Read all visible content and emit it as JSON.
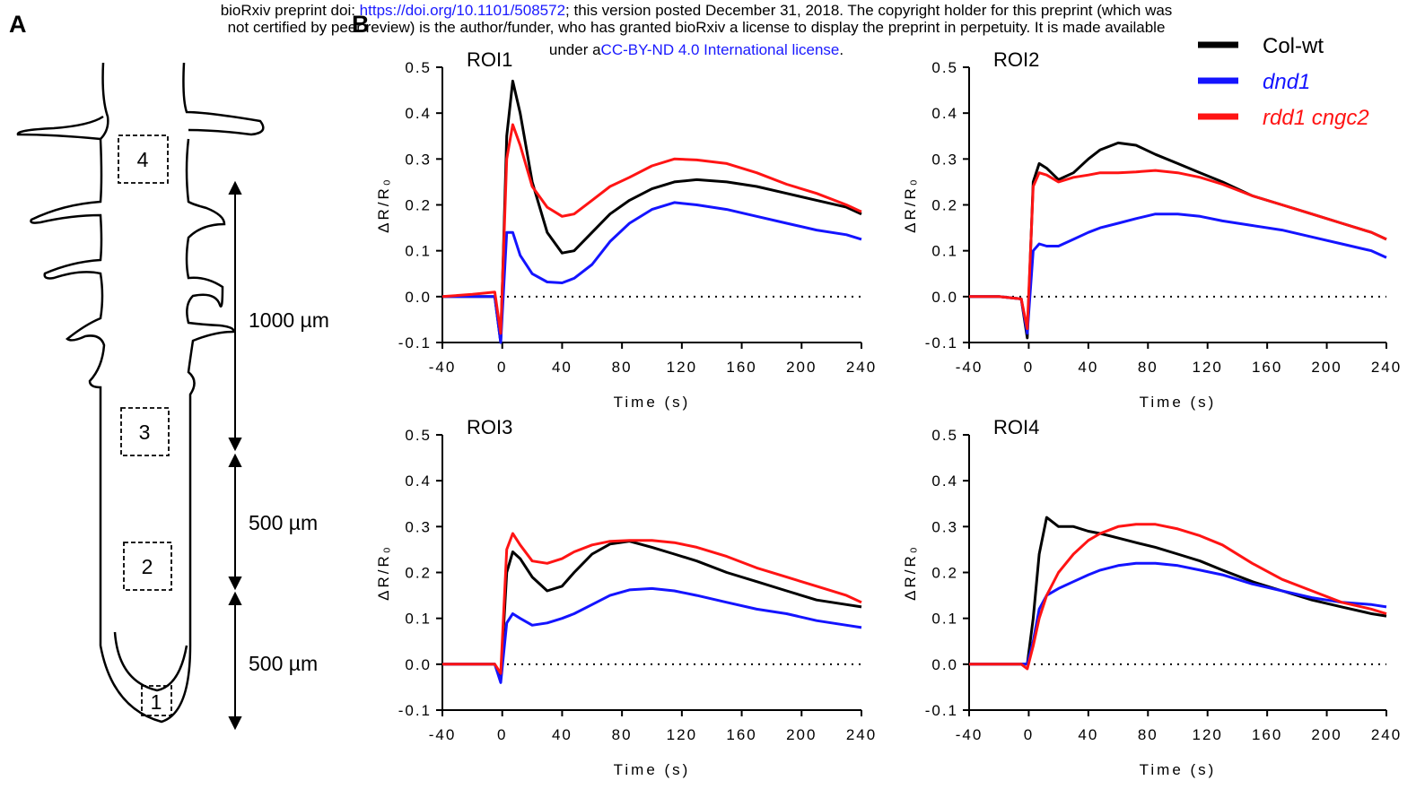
{
  "header": {
    "line1_prefix": "bioRxiv preprint doi: ",
    "doi_link": "https://doi.org/10.1101/508572",
    "line1_suffix": "; this version posted December 31, 2018. The copyright holder for this preprint (which was",
    "line2": "not certified by peer review) is the author/funder, who has granted bioRxiv a license to display the preprint in perpetuity. It is made available",
    "line3_prefix": "under a",
    "license_link": "CC-BY-ND 4.0 International license",
    "line3_suffix": "."
  },
  "panel_labels": [
    "A",
    "B"
  ],
  "diagram": {
    "boxes": [
      "4",
      "3",
      "2",
      "1"
    ],
    "distances": [
      "1000 µm",
      "500 µm",
      "500 µm"
    ]
  },
  "chart_data": [
    {
      "type": "line",
      "title": "ROI1",
      "xlabel": "Time (s)",
      "ylabel": "ΔR/R₀",
      "zero_line": true,
      "x": [
        -40,
        -20,
        -5,
        -1,
        3,
        7,
        12,
        20,
        30,
        40,
        48,
        60,
        72,
        85,
        100,
        115,
        130,
        150,
        170,
        190,
        210,
        230,
        240
      ],
      "series": [
        {
          "color": "#000000",
          "values": [
            0,
            0,
            0,
            -0.1,
            0.35,
            0.47,
            0.4,
            0.25,
            0.14,
            0.095,
            0.1,
            0.14,
            0.18,
            0.21,
            0.235,
            0.25,
            0.255,
            0.25,
            0.24,
            0.225,
            0.21,
            0.195,
            0.18
          ]
        },
        {
          "color": "#1414ff",
          "values": [
            0,
            0,
            0,
            -0.1,
            0.14,
            0.14,
            0.09,
            0.05,
            0.032,
            0.03,
            0.04,
            0.07,
            0.12,
            0.16,
            0.19,
            0.205,
            0.2,
            0.19,
            0.175,
            0.16,
            0.145,
            0.135,
            0.125
          ]
        },
        {
          "color": "#ff1414",
          "values": [
            0,
            0.005,
            0.01,
            -0.08,
            0.3,
            0.375,
            0.33,
            0.24,
            0.195,
            0.175,
            0.18,
            0.21,
            0.24,
            0.26,
            0.285,
            0.3,
            0.298,
            0.29,
            0.27,
            0.245,
            0.225,
            0.2,
            0.185
          ]
        }
      ],
      "xlim": [
        -40,
        240
      ],
      "ylim": [
        -0.1,
        0.5
      ],
      "xticks": [
        -40,
        0,
        40,
        80,
        120,
        160,
        200,
        240
      ],
      "yticks": [
        -0.1,
        {
          "value": 0,
          "label": "0.0"
        },
        0.1,
        0.2,
        0.3,
        0.4,
        0.5
      ]
    },
    {
      "type": "line",
      "title": "ROI2",
      "xlabel": "Time (s)",
      "ylabel": "ΔR/R₀",
      "zero_line": true,
      "legend": "top-right",
      "x": [
        -40,
        -20,
        -5,
        -1,
        3,
        7,
        12,
        20,
        30,
        40,
        48,
        60,
        72,
        85,
        100,
        115,
        130,
        150,
        170,
        190,
        210,
        230,
        240
      ],
      "series": [
        {
          "name": "Col-wt",
          "color": "#000000",
          "values": [
            0,
            0,
            -0.005,
            -0.09,
            0.25,
            0.29,
            0.28,
            0.255,
            0.27,
            0.3,
            0.32,
            0.335,
            0.33,
            0.31,
            0.29,
            0.27,
            0.25,
            0.22,
            0.2,
            0.18,
            0.16,
            0.14,
            0.125
          ]
        },
        {
          "name": "dnd1",
          "color": "#1414ff",
          "values": [
            0,
            0,
            -0.005,
            -0.08,
            0.1,
            0.115,
            0.11,
            0.11,
            0.125,
            0.14,
            0.15,
            0.16,
            0.17,
            0.18,
            0.18,
            0.175,
            0.165,
            0.155,
            0.145,
            0.13,
            0.115,
            0.1,
            0.085
          ]
        },
        {
          "name": "rdd1 cngc2",
          "color": "#ff1414",
          "values": [
            0,
            0,
            -0.005,
            -0.07,
            0.24,
            0.27,
            0.265,
            0.25,
            0.26,
            0.265,
            0.27,
            0.27,
            0.272,
            0.275,
            0.27,
            0.26,
            0.245,
            0.22,
            0.2,
            0.18,
            0.16,
            0.14,
            0.125
          ]
        }
      ],
      "xlim": [
        -40,
        240
      ],
      "ylim": [
        -0.1,
        0.5
      ],
      "xticks": [
        -40,
        0,
        40,
        80,
        120,
        160,
        200,
        240
      ],
      "yticks": [
        -0.1,
        {
          "value": 0,
          "label": "0.0"
        },
        0.1,
        0.2,
        0.3,
        0.4,
        0.5
      ]
    },
    {
      "type": "line",
      "title": "ROI3",
      "xlabel": "Time (s)",
      "ylabel": "ΔR/R₀",
      "zero_line": true,
      "x": [
        -40,
        -20,
        -5,
        -1,
        3,
        7,
        12,
        20,
        30,
        40,
        48,
        60,
        72,
        85,
        100,
        115,
        130,
        150,
        170,
        190,
        210,
        230,
        240
      ],
      "series": [
        {
          "color": "#000000",
          "values": [
            0,
            0,
            0,
            -0.03,
            0.2,
            0.245,
            0.23,
            0.19,
            0.16,
            0.17,
            0.2,
            0.24,
            0.262,
            0.268,
            0.255,
            0.24,
            0.225,
            0.2,
            0.18,
            0.16,
            0.14,
            0.13,
            0.125
          ]
        },
        {
          "color": "#1414ff",
          "values": [
            0,
            0,
            0,
            -0.04,
            0.09,
            0.11,
            0.1,
            0.085,
            0.09,
            0.1,
            0.11,
            0.13,
            0.15,
            0.162,
            0.165,
            0.16,
            0.15,
            0.135,
            0.12,
            0.11,
            0.095,
            0.085,
            0.08
          ]
        },
        {
          "color": "#ff1414",
          "values": [
            0,
            0,
            0,
            -0.02,
            0.25,
            0.285,
            0.26,
            0.225,
            0.22,
            0.23,
            0.245,
            0.26,
            0.268,
            0.27,
            0.27,
            0.265,
            0.255,
            0.235,
            0.21,
            0.19,
            0.17,
            0.15,
            0.135
          ]
        }
      ],
      "xlim": [
        -40,
        240
      ],
      "ylim": [
        -0.1,
        0.5
      ],
      "xticks": [
        -40,
        0,
        40,
        80,
        120,
        160,
        200,
        240
      ],
      "yticks": [
        -0.1,
        {
          "value": 0,
          "label": "0.0"
        },
        0.1,
        0.2,
        0.3,
        0.4,
        0.5
      ]
    },
    {
      "type": "line",
      "title": "ROI4",
      "xlabel": "Time (s)",
      "ylabel": "ΔR/R₀",
      "zero_line": true,
      "x": [
        -40,
        -20,
        -5,
        -1,
        3,
        7,
        12,
        20,
        30,
        40,
        48,
        60,
        72,
        85,
        100,
        115,
        130,
        150,
        170,
        190,
        210,
        230,
        240
      ],
      "series": [
        {
          "color": "#000000",
          "values": [
            0,
            0,
            0,
            0,
            0.1,
            0.24,
            0.32,
            0.3,
            0.3,
            0.29,
            0.285,
            0.275,
            0.265,
            0.255,
            0.24,
            0.225,
            0.205,
            0.18,
            0.16,
            0.14,
            0.125,
            0.11,
            0.105
          ]
        },
        {
          "color": "#1414ff",
          "values": [
            0,
            0,
            0,
            0,
            0.05,
            0.12,
            0.15,
            0.165,
            0.18,
            0.195,
            0.205,
            0.215,
            0.22,
            0.22,
            0.215,
            0.205,
            0.195,
            0.175,
            0.16,
            0.145,
            0.135,
            0.13,
            0.125
          ]
        },
        {
          "color": "#ff1414",
          "values": [
            0,
            0,
            0,
            -0.01,
            0.04,
            0.1,
            0.15,
            0.2,
            0.24,
            0.27,
            0.285,
            0.3,
            0.305,
            0.305,
            0.295,
            0.28,
            0.26,
            0.22,
            0.185,
            0.16,
            0.135,
            0.12,
            0.11
          ]
        }
      ],
      "xlim": [
        -40,
        240
      ],
      "ylim": [
        -0.1,
        0.5
      ],
      "xticks": [
        -40,
        0,
        40,
        80,
        120,
        160,
        200,
        240
      ],
      "yticks": [
        -0.1,
        {
          "value": 0,
          "label": "0.0"
        },
        0.1,
        0.2,
        0.3,
        0.4,
        0.5
      ]
    }
  ]
}
